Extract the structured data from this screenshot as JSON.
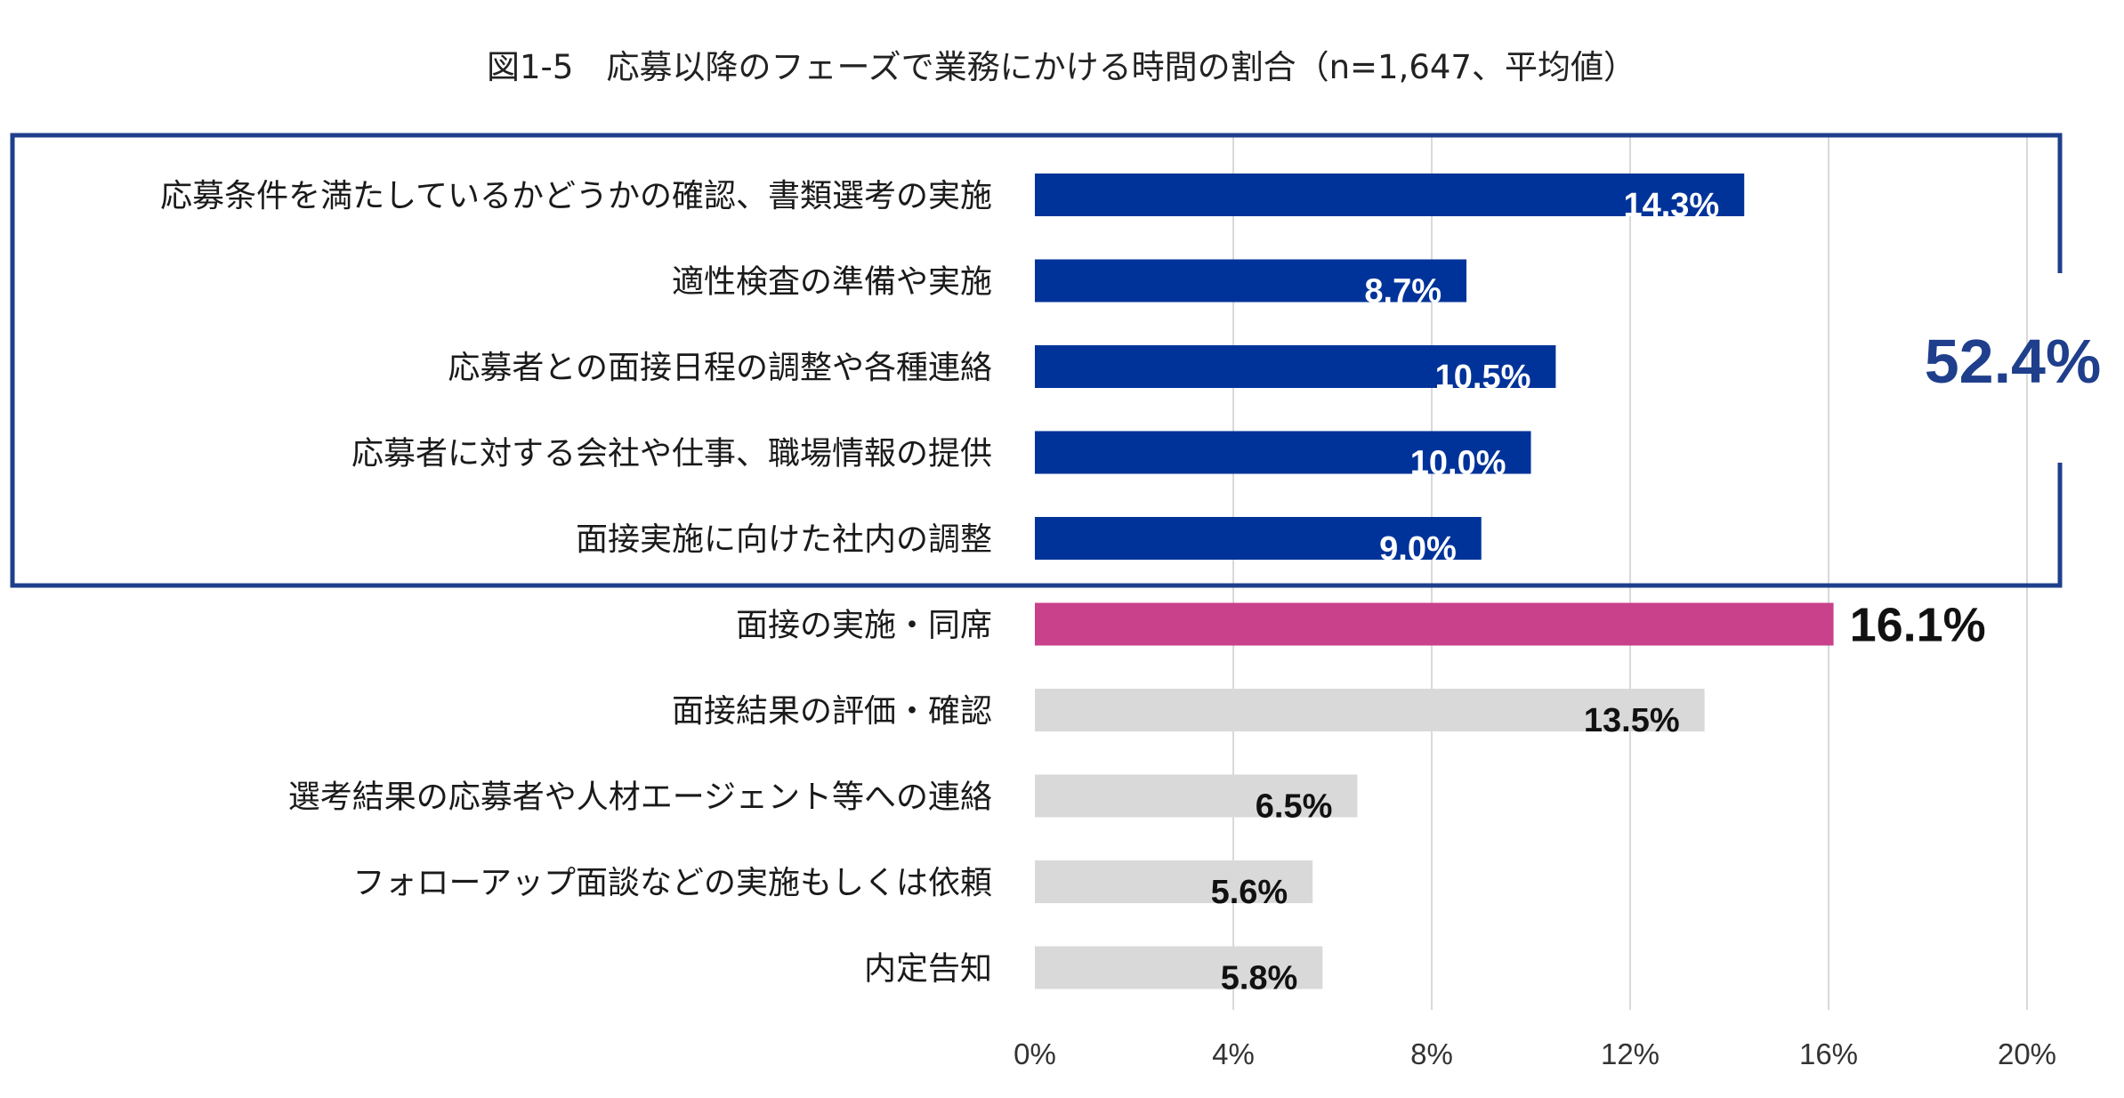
{
  "chart_data": {
    "type": "bar",
    "orientation": "horizontal",
    "title": "図1-5　応募以降のフェーズで業務にかける時間の割合（n=1,647、平均値）",
    "xlabel": "",
    "ylabel": "",
    "xlim": [
      0,
      20
    ],
    "x_ticks": [
      "0%",
      "4%",
      "8%",
      "12%",
      "16%",
      "20%"
    ],
    "grid": "vertical",
    "categories": [
      "応募条件を満たしているかどうかの確認、書類選考の実施",
      "適性検査の準備や実施",
      "応募者との面接日程の調整や各種連絡",
      "応募者に対する会社や仕事、職場情報の提供",
      "面接実施に向けた社内の調整",
      "面接の実施・同席",
      "面接結果の評価・確認",
      "選考結果の応募者や人材エージェント等への連絡",
      "フォローアップ面談などの実施もしくは依頼",
      "内定告知"
    ],
    "values": [
      14.3,
      8.7,
      10.5,
      10.0,
      9.0,
      16.1,
      13.5,
      6.5,
      5.6,
      5.8
    ],
    "value_labels": [
      "14.3%",
      "8.7%",
      "10.5%",
      "10.0%",
      "9.0%",
      "16.1%",
      "13.5%",
      "6.5%",
      "5.6%",
      "5.8%"
    ],
    "bar_groups": [
      "group",
      "group",
      "group",
      "group",
      "group",
      "highlight",
      "other",
      "other",
      "other",
      "other"
    ],
    "group_bracket": {
      "first_index": 0,
      "last_index": 4,
      "total_label": "52.4%"
    },
    "colors": {
      "group": "#003399",
      "highlight": "#C8418A",
      "other": "#D9D9D9",
      "bracket": "#1F3F8C",
      "grid": "#D9D9D9",
      "label_on_dark": "#ffffff",
      "label_on_light": "#111111",
      "total_label": "#1F3F8C"
    }
  }
}
